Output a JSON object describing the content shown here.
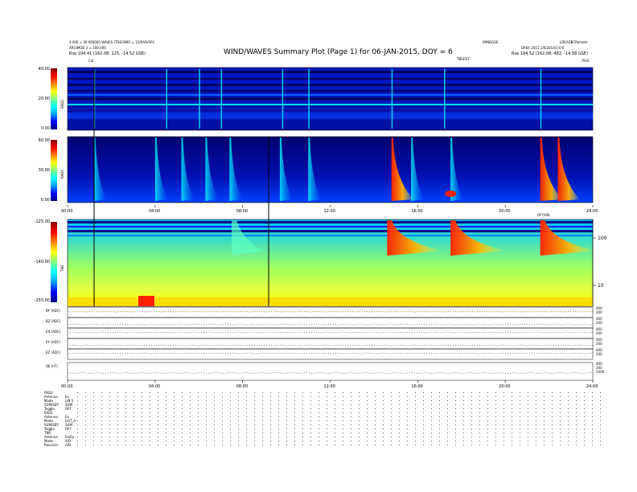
{
  "header": {
    "title": "WIND/WAVES Summary Plot (Page 1) for 06-JAN-2015, DOY = 6",
    "left_lines": [
      "4.000 = 00.000000 WAVES (TDS/SNR) = 15/RAD/SPC",
      "ARGIMOD 3 = 100.000",
      "Rse     194.41 (162.08, 125, -14.52 GSE)"
    ],
    "right_top_a": "WINDGSE",
    "right_top_b": "LDEADBCRemote",
    "right_lines": [
      "DAILY 2015 1/6/2014/3:0:0",
      "Rse     194.52 (162.08, 482, -14.58 GSE)"
    ],
    "marker_left": "Cal",
    "marker_center": "TBURST",
    "marker_right": "RH3"
  },
  "panels": {
    "rad2": {
      "label": "RAD2",
      "ticks": [
        "40.00",
        "20.00",
        "0.00"
      ]
    },
    "rad1": {
      "label": "RAD1",
      "ticks": [
        "60.00",
        "30.00",
        "0.00"
      ]
    },
    "tnr": {
      "label": "TNR",
      "ticks": [
        "-125.00",
        "-140.00",
        "-155.00"
      ],
      "right_ticks": [
        "100",
        "10"
      ],
      "right_label": "OFF/ON"
    },
    "line_panels": [
      {
        "label": "BY (ADC)",
        "r": [
          "400",
          "200"
        ]
      },
      {
        "label": "BZ (ADC)",
        "r": [
          "400",
          "200"
        ]
      },
      {
        "label": "EX (ADC)",
        "r": [
          "400",
          "200"
        ]
      },
      {
        "label": "EY (ADC)",
        "r": [
          "400",
          "200"
        ]
      },
      {
        "label": "EZ (ADC)",
        "r": [
          "400",
          "200"
        ]
      },
      {
        "label": "|B| (nT)",
        "r": [
          "400",
          "200",
          "1000"
        ]
      }
    ]
  },
  "time_axis": [
    "00:00",
    "04:00",
    "08:00",
    "12:00",
    "16:00",
    "20:00",
    "24:00"
  ],
  "colors": {
    "colorbar": [
      "#000080",
      "#0000ff",
      "#00a0ff",
      "#00ffff",
      "#80ff80",
      "#ffff00",
      "#ff8000",
      "#ff0000",
      "#800000"
    ]
  },
  "settings": [
    {
      "k": "RAD2",
      "v": ""
    },
    {
      "k": "Antenna",
      "v": "Ex"
    },
    {
      "k": "Mode",
      "v": "LIN S"
    },
    {
      "k": "SUM/SEP",
      "v": "SUM"
    },
    {
      "k": "Toggle",
      "v": "OFF"
    },
    {
      "k": "RAD1",
      "v": ""
    },
    {
      "k": "Antenna",
      "v": "Ex"
    },
    {
      "k": "Mode",
      "v": "LIST_A"
    },
    {
      "k": "SUM/SEP",
      "v": "SUM"
    },
    {
      "k": "Toggle",
      "v": "OFF"
    },
    {
      "k": "TNR",
      "v": ""
    },
    {
      "k": "Antenna",
      "v": "Ex/Ey"
    },
    {
      "k": "Mode",
      "v": "A/D"
    },
    {
      "k": "Receiver",
      "v": "A/B"
    }
  ],
  "chart_data": [
    {
      "type": "heatmap",
      "title": "RAD2",
      "ylabel": "RAD2",
      "ylim": [
        0,
        40
      ],
      "x": [
        "00:00",
        "24:00"
      ],
      "bursts_hours": [
        1.2,
        4.5,
        6.0,
        7.0,
        9.8,
        11.0,
        14.8,
        17.2,
        21.6
      ]
    },
    {
      "type": "heatmap",
      "title": "RAD1",
      "ylabel": "RAD1",
      "ylim": [
        0,
        60
      ],
      "x": [
        "00:00",
        "24:00"
      ],
      "bursts_hours": [
        1.2,
        4.0,
        5.2,
        6.3,
        7.4,
        9.7,
        11.0,
        14.8,
        15.7,
        17.5,
        21.6,
        22.4
      ]
    },
    {
      "type": "heatmap",
      "title": "TNR",
      "ylabel": "TNR",
      "ylim": [
        -155,
        -125
      ],
      "x": [
        "00:00",
        "24:00"
      ],
      "bursts_hours": [
        7.5,
        14.6,
        17.5,
        21.6
      ]
    }
  ]
}
